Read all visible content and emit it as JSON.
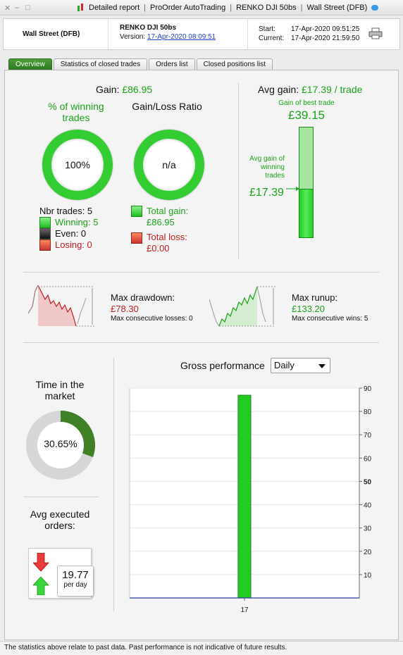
{
  "window": {
    "tab_detailed": "Detailed report",
    "tab_proorder": "ProOrder AutoTrading",
    "tab_system": "RENKO DJI 50bs",
    "tab_instrument": "Wall Street (DFB)",
    "controls": [
      "×",
      "–",
      "□"
    ]
  },
  "header": {
    "instrument": "Wall Street (DFB)",
    "system": "RENKO DJI 50bs",
    "version_label": "Version:",
    "version_date": "17-Apr-2020 08:09:51",
    "start_label": "Start:",
    "start_value": "17-Apr-2020 09:51:25",
    "current_label": "Current:",
    "current_value": "17-Apr-2020 21:59:50"
  },
  "tabs": [
    {
      "label": "Overview",
      "active": true
    },
    {
      "label": "Statistics of closed trades"
    },
    {
      "label": "Orders list"
    },
    {
      "label": "Closed positions list"
    }
  ],
  "gain": {
    "label": "Gain:",
    "value": "£86.95",
    "winning_title": "% of winning trades",
    "winning_pct": "100%",
    "winning_fraction": 1.0,
    "ratio_title": "Gain/Loss Ratio",
    "ratio_value": "n/a",
    "nbr_trades": "Nbr trades: 5",
    "winning": "Winning: 5",
    "even": "Even: 0",
    "losing": "Losing: 0",
    "total_gain_label": "Total gain:",
    "total_gain_value": "£86.95",
    "total_loss_label": "Total loss:",
    "total_loss_value": "£0.00"
  },
  "avg_gain": {
    "label": "Avg gain:",
    "value": "£17.39 / trade",
    "best_label": "Gain of best trade",
    "best_value": "£39.15",
    "best_amount": 39.15,
    "avg_winning_label": "Avg gain of winning trades",
    "avg_winning_value": "£17.39",
    "avg_winning_amount": 17.39
  },
  "drawdown": {
    "label": "Max drawdown:",
    "value": "£78.30",
    "sub": "Max consecutive losses: 0"
  },
  "runup": {
    "label": "Max runup:",
    "value": "£133.20",
    "sub": "Max consecutive wins: 5"
  },
  "time_in_market": {
    "title": "Time in the market",
    "value": "30.65%",
    "fraction": 0.3065
  },
  "avg_orders": {
    "title": "Avg executed orders:",
    "value": "19.77",
    "unit": "per day"
  },
  "performance": {
    "title": "Gross performance",
    "period": "Daily"
  },
  "chart_data": {
    "type": "bar",
    "categories": [
      "17"
    ],
    "values": [
      86.95
    ],
    "ylim": [
      0,
      90
    ],
    "yticks": [
      10,
      20,
      30,
      40,
      50,
      60,
      70,
      80,
      90
    ],
    "grid": true,
    "color": "#22cc22"
  },
  "footer": {
    "disclaimer": "The statistics above relate to past data. Past performance is not indicative of future results."
  }
}
